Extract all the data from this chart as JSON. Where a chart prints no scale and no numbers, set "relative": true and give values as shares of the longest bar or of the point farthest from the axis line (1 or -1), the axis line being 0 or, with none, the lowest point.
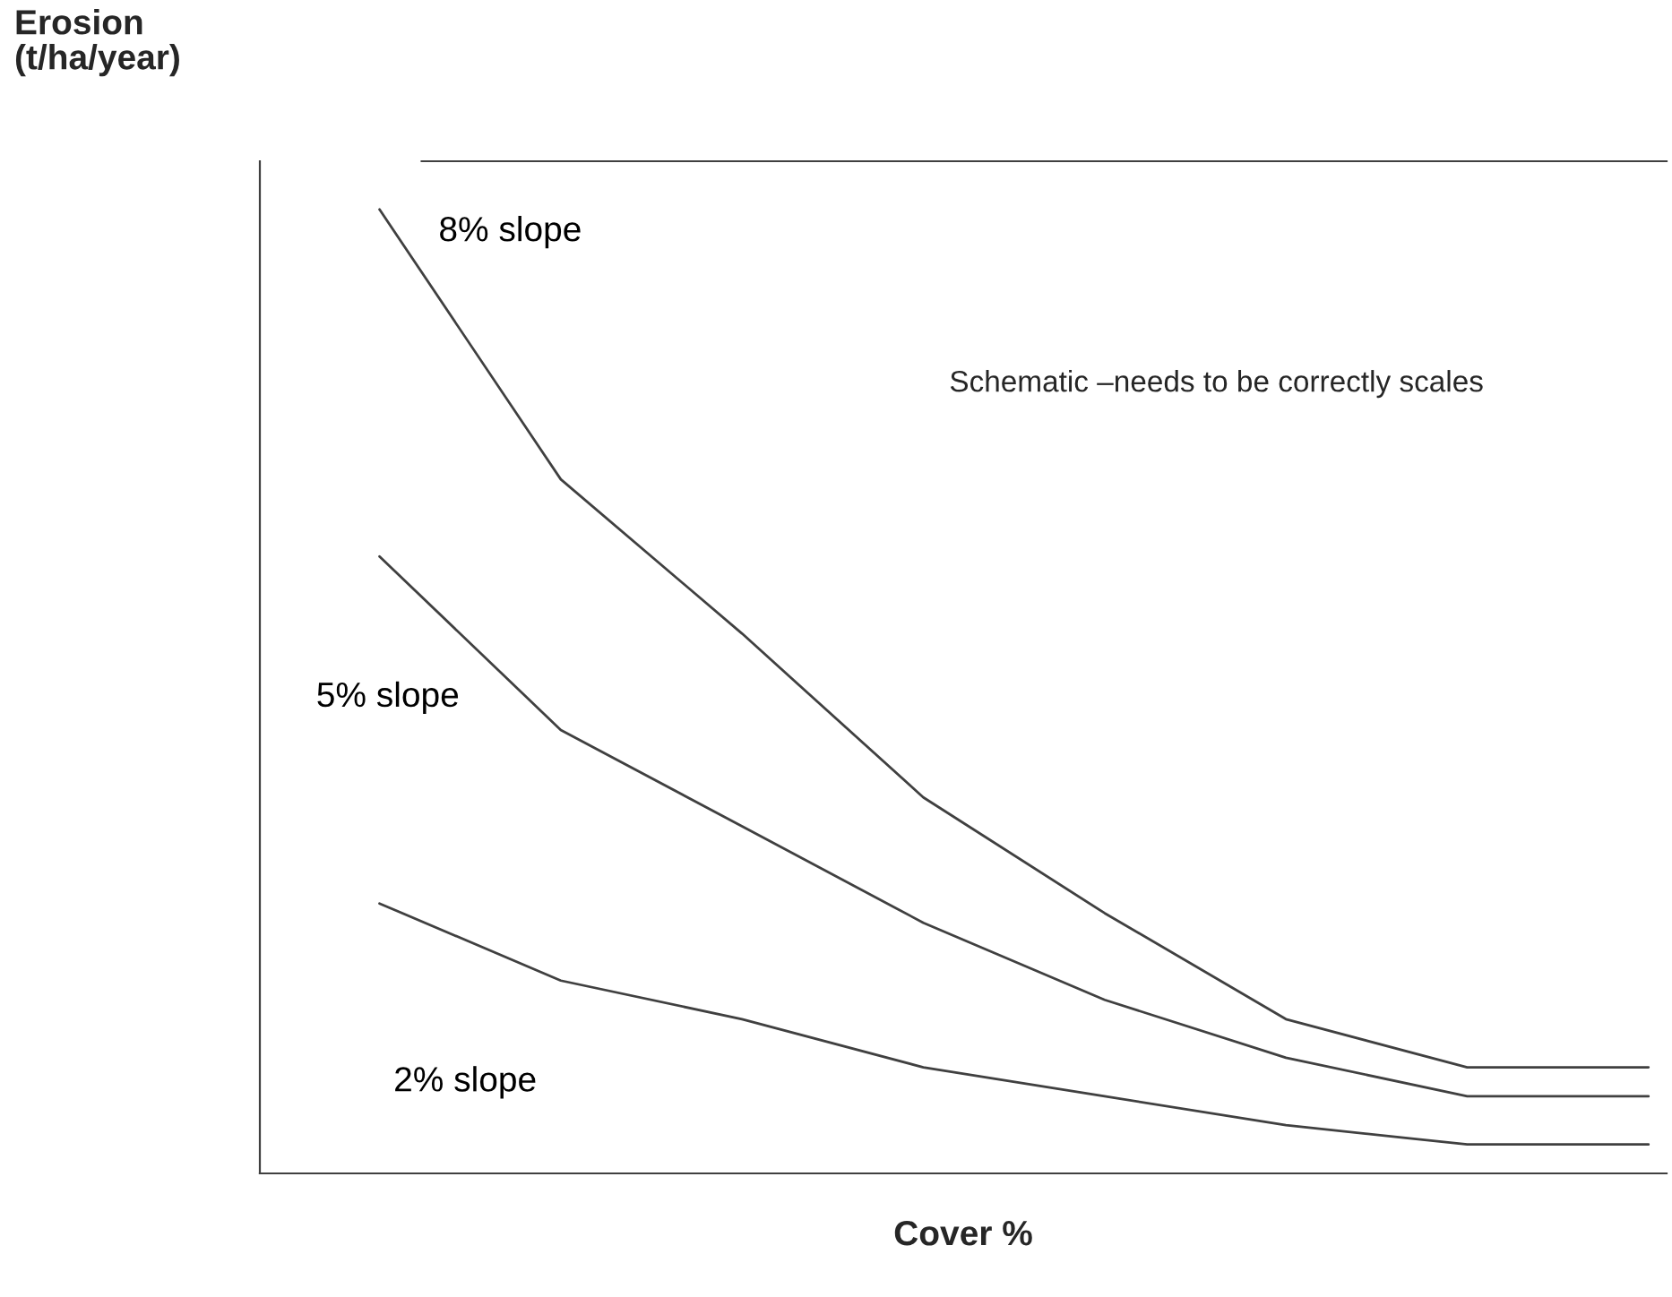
{
  "chart_data": {
    "type": "line",
    "relative": true,
    "xlabel": "Cover %",
    "ylabel": "Erosion\n(t/ha/year)",
    "legend": false,
    "marker": "none",
    "line_style": "solid",
    "annotations": [
      "Schematic –needs to be correctly scales"
    ],
    "categories": [
      null,
      null,
      null,
      null,
      null,
      null,
      null,
      null
    ],
    "series": [
      {
        "name": "8% slope",
        "color": "#404040",
        "values": [
          1,
          0.72,
          0.56,
          0.39,
          0.27,
          0.16,
          0.11,
          0.11
        ]
      },
      {
        "name": "5% slope",
        "color": "#404040",
        "values": [
          0.64,
          0.46,
          0.36,
          0.26,
          0.18,
          0.12,
          0.08,
          0.08
        ]
      },
      {
        "name": "2% slope",
        "color": "#404040",
        "values": [
          0.28,
          0.2,
          0.16,
          0.11,
          0.08,
          0.05,
          0.03,
          0.03
        ]
      }
    ]
  }
}
